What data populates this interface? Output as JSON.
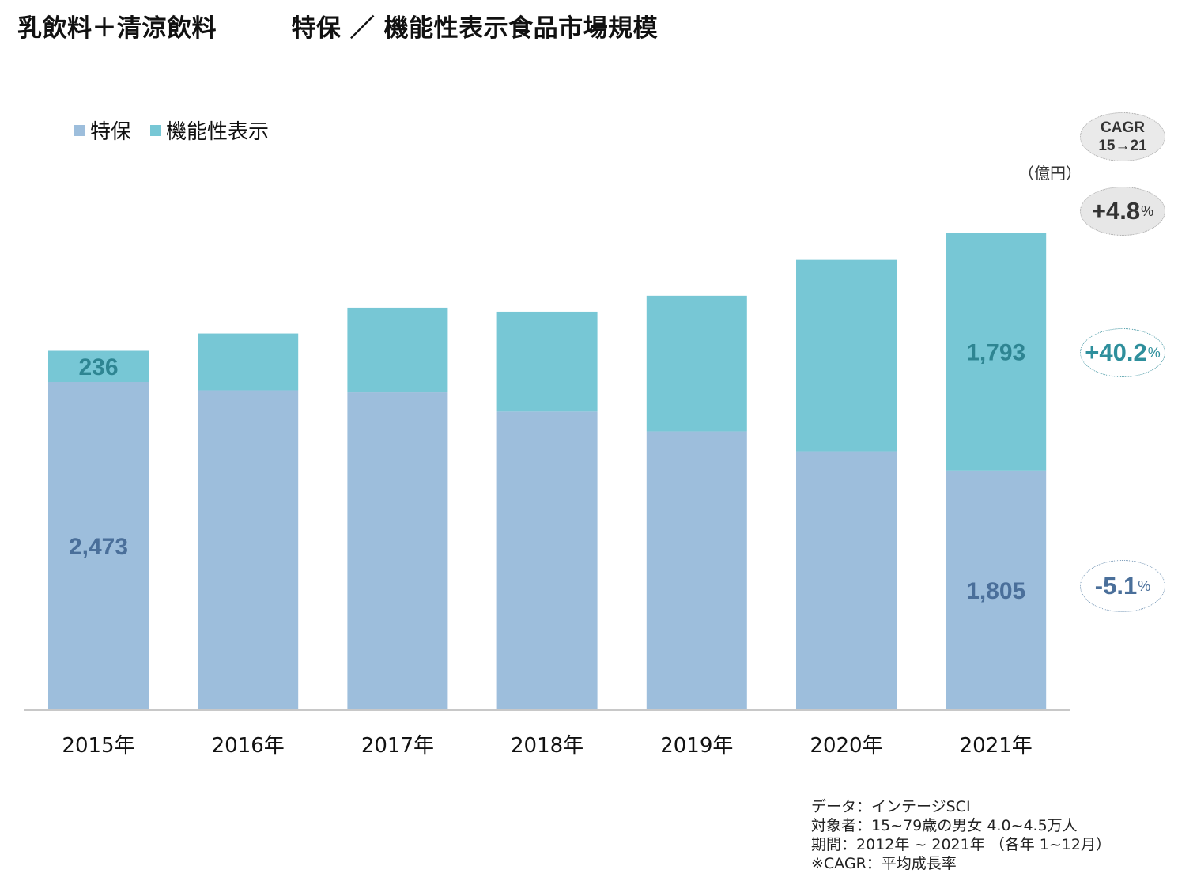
{
  "title": "乳飲料＋清涼飲料　　　特保 ／ 機能性表示食品市場規模",
  "legend": {
    "tokuho": "特保",
    "kinou": "機能性表示"
  },
  "unit": "（億円）",
  "cagr": {
    "header_line1": "CAGR",
    "header_line2": "15→21",
    "total": "+4.8",
    "kinou": "+40.2",
    "tokuho": "-5.1",
    "pct": "%"
  },
  "footnote": {
    "line1": "データ：インテージSCI",
    "line2": "対象者：15~79歳の男女 4.0~4.5万人",
    "line3": "期間：2012年 ~ 2021年 （各年 1~12月）",
    "line4": "※CAGR：平均成長率"
  },
  "colors": {
    "tokuho": "#9dbedc",
    "kinou": "#77c7d5",
    "tokuho_label": "#4a6f9a",
    "kinou_label": "#2e8592"
  },
  "chart_data": {
    "type": "bar",
    "stacked": true,
    "categories": [
      "2015年",
      "2016年",
      "2017年",
      "2018年",
      "2019年",
      "2020年",
      "2021年"
    ],
    "series": [
      {
        "name": "特保",
        "values": [
          2473,
          2410,
          2395,
          2250,
          2100,
          1950,
          1805
        ],
        "labels": [
          "2,473",
          "",
          "",
          "",
          "",
          "",
          "1,805"
        ]
      },
      {
        "name": "機能性表示",
        "values": [
          236,
          430,
          640,
          755,
          1025,
          1445,
          1793
        ],
        "labels": [
          "236",
          "",
          "",
          "",
          "",
          "",
          "1,793"
        ]
      }
    ],
    "ylim": [
      0,
      3700
    ],
    "grid": false,
    "legend_position": "top-left"
  }
}
